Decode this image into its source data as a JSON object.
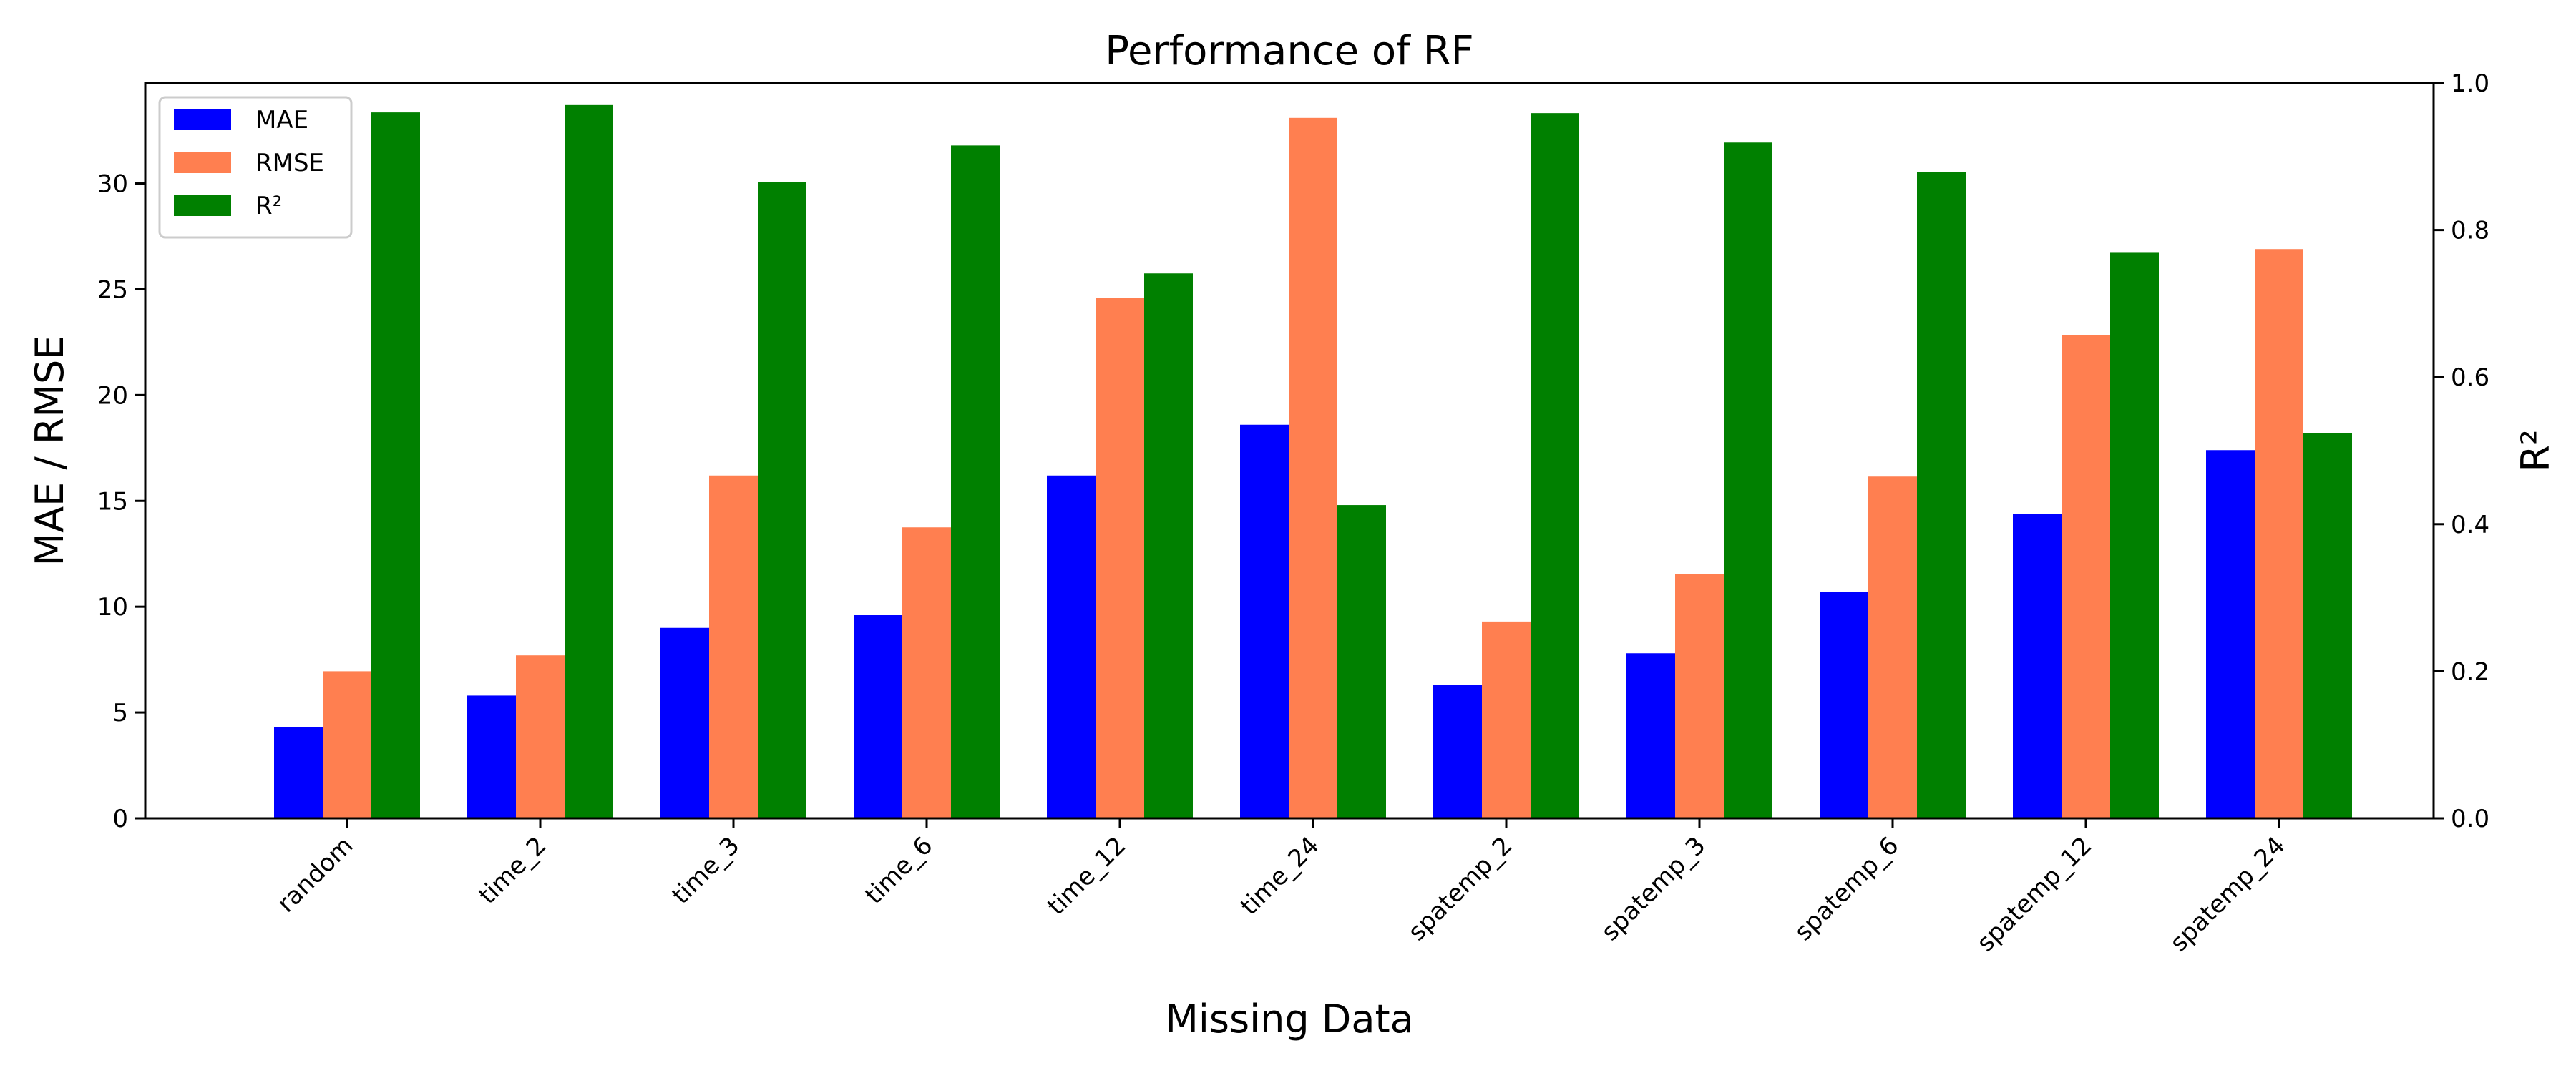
{
  "chart_data": {
    "type": "bar",
    "title": "Performance of RF",
    "xlabel": "Missing Data",
    "ylabel": "MAE / RMSE",
    "y2label": "R²",
    "categories": [
      "random",
      "time_2",
      "time_3",
      "time_6",
      "time_12",
      "time_24",
      "spatemp_2",
      "spatemp_3",
      "spatemp_6",
      "spatemp_12",
      "spatemp_24"
    ],
    "series": [
      {
        "name": "MAE",
        "axis": "left",
        "color": "#0000ff",
        "values": [
          4.3,
          5.8,
          9.0,
          9.6,
          16.2,
          18.6,
          6.3,
          7.8,
          10.7,
          14.4,
          17.4
        ]
      },
      {
        "name": "RMSE",
        "axis": "left",
        "color": "#ff7f50",
        "values": [
          6.95,
          7.7,
          16.2,
          13.75,
          24.6,
          33.1,
          9.3,
          11.55,
          16.15,
          22.85,
          26.9
        ]
      },
      {
        "name": "R²",
        "axis": "right",
        "color": "#008000",
        "values": [
          0.96,
          0.97,
          0.865,
          0.915,
          0.741,
          0.426,
          0.959,
          0.919,
          0.879,
          0.77,
          0.524
        ]
      }
    ],
    "ylim": [
      0,
      34.75
    ],
    "y2lim": [
      0,
      1.0
    ],
    "yticks": [
      "0",
      "5",
      "10",
      "15",
      "20",
      "25",
      "30"
    ],
    "y2ticks": [
      "0.0",
      "0.2",
      "0.4",
      "0.6",
      "0.8",
      "1.0"
    ],
    "legend_position": "top-left",
    "grid": false
  }
}
